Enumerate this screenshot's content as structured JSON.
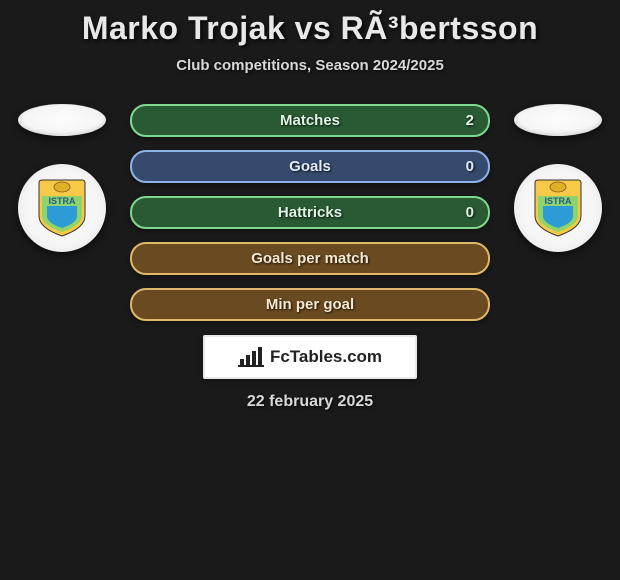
{
  "header": {
    "title": "Marko Trojak vs RÃ³bertsson",
    "subtitle": "Club competitions, Season 2024/2025"
  },
  "stats": [
    {
      "label": "Matches",
      "value": "2",
      "bg": "#2a5a34",
      "border": "#7fd88f",
      "text": "#dff4e2"
    },
    {
      "label": "Goals",
      "value": "0",
      "bg": "#354a6c",
      "border": "#8eb3e6",
      "text": "#e0ecfb"
    },
    {
      "label": "Hattricks",
      "value": "0",
      "bg": "#2a5a34",
      "border": "#7fd88f",
      "text": "#dff4e2"
    },
    {
      "label": "Goals per match",
      "value": "",
      "bg": "#6a4a20",
      "border": "#e0b86c",
      "text": "#f5e8d2"
    },
    {
      "label": "Min per goal",
      "value": "",
      "bg": "#6a4a20",
      "border": "#e0b86c",
      "text": "#f5e8d2"
    }
  ],
  "badge": {
    "shield_top": "#f7c948",
    "shield_mid": "#8fd36a",
    "shield_bottom": "#2c9bd6",
    "text": "ISTRA",
    "text_color": "#1e5a8f"
  },
  "branding": {
    "text": "FcTables.com",
    "icon_color": "#222222"
  },
  "date": "22 february 2025"
}
